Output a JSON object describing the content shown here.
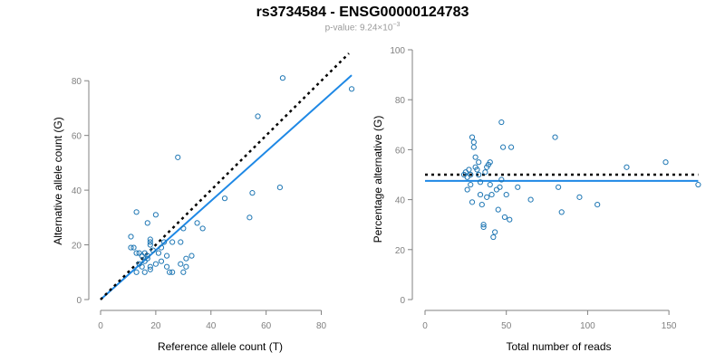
{
  "header": {
    "title": "rs3734584 - ENSG00000124783",
    "pvalue_prefix": "p-value: 9.24×10",
    "pvalue_exp": "−3"
  },
  "colors": {
    "points": "#1f77b4",
    "fit": "#1e88e5",
    "reference": "#000000",
    "axis": "#808080"
  },
  "chart_data": [
    {
      "type": "scatter",
      "xlabel": "Reference allele count (T)",
      "ylabel": "Alternative allele count (G)",
      "xlim": [
        0,
        90
      ],
      "ylim": [
        0,
        90
      ],
      "xticks": [
        0,
        20,
        40,
        60,
        80
      ],
      "yticks": [
        0,
        20,
        40,
        60,
        80
      ],
      "points": [
        [
          11,
          19
        ],
        [
          12,
          19
        ],
        [
          11,
          23
        ],
        [
          13,
          32
        ],
        [
          13,
          17
        ],
        [
          14,
          13
        ],
        [
          14,
          17
        ],
        [
          15,
          12
        ],
        [
          16,
          14
        ],
        [
          16,
          17
        ],
        [
          15,
          16
        ],
        [
          17,
          16
        ],
        [
          17,
          15
        ],
        [
          18,
          11
        ],
        [
          18,
          12
        ],
        [
          18,
          21
        ],
        [
          18,
          20
        ],
        [
          18,
          22
        ],
        [
          19,
          18
        ],
        [
          20,
          31
        ],
        [
          17,
          28
        ],
        [
          20,
          13
        ],
        [
          21,
          17
        ],
        [
          22,
          19
        ],
        [
          23,
          21
        ],
        [
          24,
          16
        ],
        [
          24,
          12
        ],
        [
          25,
          10
        ],
        [
          26,
          10
        ],
        [
          26,
          21
        ],
        [
          28,
          52
        ],
        [
          29,
          21
        ],
        [
          29,
          13
        ],
        [
          30,
          10
        ],
        [
          31,
          15
        ],
        [
          31,
          12
        ],
        [
          33,
          16
        ],
        [
          35,
          28
        ],
        [
          37,
          26
        ],
        [
          45,
          37
        ],
        [
          54,
          30
        ],
        [
          55,
          39
        ],
        [
          57,
          67
        ],
        [
          65,
          41
        ],
        [
          66,
          81
        ],
        [
          91,
          77
        ],
        [
          13,
          10
        ],
        [
          22,
          14
        ],
        [
          30,
          26
        ],
        [
          16,
          10
        ]
      ],
      "reference_line": [
        [
          0,
          0
        ],
        [
          90,
          90
        ]
      ],
      "fit_line": [
        [
          0,
          0
        ],
        [
          91,
          82
        ]
      ]
    },
    {
      "type": "scatter",
      "xlabel": "Total number of reads",
      "ylabel": "Percentage alternative (G)",
      "xlim": [
        0,
        170
      ],
      "ylim": [
        0,
        100
      ],
      "xticks": [
        0,
        50,
        100,
        150
      ],
      "yticks": [
        0,
        20,
        40,
        60,
        80,
        100
      ],
      "points": [
        [
          24,
          50
        ],
        [
          25,
          51
        ],
        [
          26,
          49
        ],
        [
          26,
          44
        ],
        [
          27,
          52
        ],
        [
          28,
          46
        ],
        [
          29,
          39
        ],
        [
          29,
          65
        ],
        [
          30,
          63
        ],
        [
          30,
          61
        ],
        [
          31,
          57
        ],
        [
          31,
          53
        ],
        [
          32,
          52
        ],
        [
          33,
          55
        ],
        [
          33,
          50
        ],
        [
          34,
          47
        ],
        [
          34,
          42
        ],
        [
          35,
          38
        ],
        [
          36,
          30
        ],
        [
          36,
          29
        ],
        [
          37,
          51
        ],
        [
          38,
          53
        ],
        [
          39,
          54
        ],
        [
          40,
          55
        ],
        [
          40,
          46
        ],
        [
          41,
          42
        ],
        [
          42,
          25
        ],
        [
          43,
          27
        ],
        [
          44,
          44
        ],
        [
          45,
          36
        ],
        [
          46,
          45
        ],
        [
          47,
          48
        ],
        [
          47,
          71
        ],
        [
          48,
          61
        ],
        [
          49,
          33
        ],
        [
          50,
          42
        ],
        [
          52,
          32
        ],
        [
          53,
          61
        ],
        [
          57,
          45
        ],
        [
          65,
          40
        ],
        [
          80,
          65
        ],
        [
          82,
          45
        ],
        [
          84,
          35
        ],
        [
          95,
          41
        ],
        [
          106,
          38
        ],
        [
          124,
          53
        ],
        [
          148,
          55
        ],
        [
          168,
          46
        ],
        [
          28,
          50
        ],
        [
          38,
          41
        ]
      ],
      "reference_line": [
        [
          0,
          50
        ],
        [
          168,
          50
        ]
      ],
      "fit_line": [
        [
          0,
          47.5
        ],
        [
          168,
          47.5
        ]
      ]
    }
  ]
}
